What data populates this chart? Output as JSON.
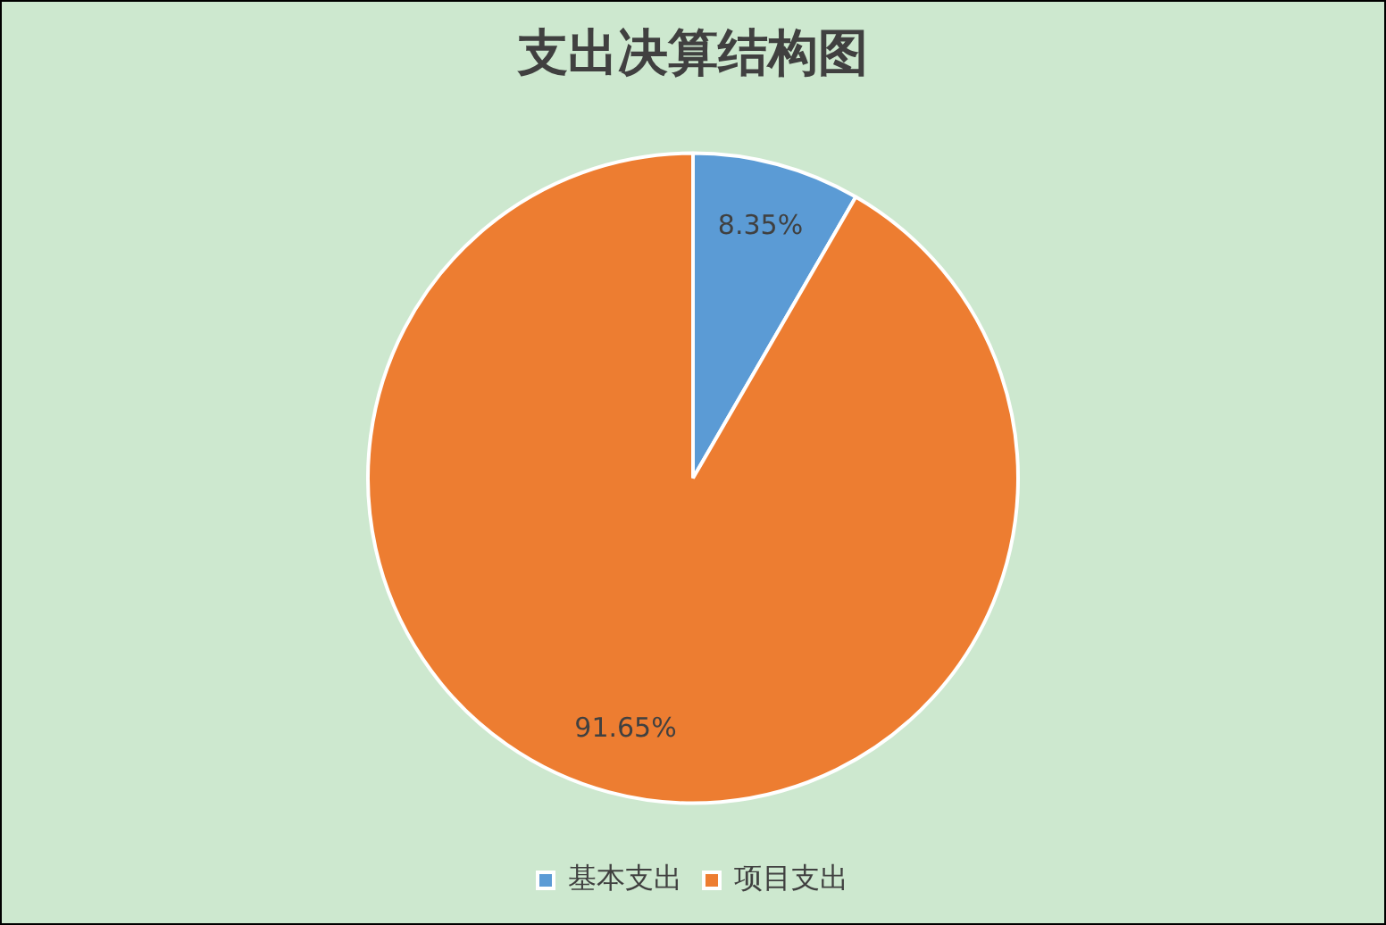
{
  "chart_data": {
    "type": "pie",
    "title": "支出决算结构图",
    "categories": [
      "基本支出",
      "项目支出"
    ],
    "values": [
      8.35,
      91.65
    ],
    "colors": [
      "#5b9bd5",
      "#ed7d31"
    ],
    "value_labels": [
      "8.35%",
      "91.65%"
    ],
    "legend": "bottom"
  }
}
